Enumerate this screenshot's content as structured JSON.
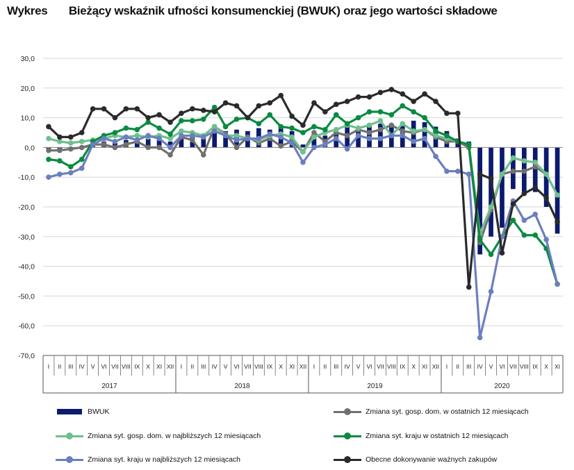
{
  "header": {
    "label": "Wykres",
    "title": "Bieżący wskaźnik ufności konsumenckiej (BWUK) oraz jego wartości składowe"
  },
  "colors": {
    "bwuk": "#0b1a6e",
    "gosp_last12": "#707070",
    "gosp_next12": "#6fbf8f",
    "kraj_last12": "#0a8a42",
    "kraj_next12": "#6b7fbf",
    "zakupy": "#2a2a2a"
  },
  "chart_data": {
    "type": "bar+line",
    "title": "Bieżący wskaźnik ufności konsumenckiej (BWUK) oraz jego wartości składowe",
    "ylim": [
      -70,
      30
    ],
    "yticks": [
      "30,0",
      "20,0",
      "10,0",
      "0,0",
      "-10,0",
      "-20,0",
      "-30,0",
      "-40,0",
      "-50,0",
      "-60,0",
      "-70,0"
    ],
    "yticks_values": [
      30,
      20,
      10,
      0,
      -10,
      -20,
      -30,
      -40,
      -50,
      -60,
      -70
    ],
    "grid": true,
    "months": [
      "I",
      "II",
      "III",
      "IV",
      "V",
      "VI",
      "VII",
      "VIII",
      "IX",
      "X",
      "XI",
      "XII",
      "I",
      "II",
      "III",
      "IV",
      "V",
      "VI",
      "VII",
      "VIII",
      "IX",
      "X",
      "XI",
      "XII",
      "I",
      "II",
      "III",
      "IV",
      "V",
      "VI",
      "VII",
      "VIII",
      "IX",
      "X",
      "XI",
      "XII",
      "I",
      "II",
      "III",
      "IV",
      "V",
      "VI",
      "VII",
      "VIII",
      "IX",
      "X",
      "XI"
    ],
    "years": [
      {
        "label": "2017",
        "start": 0,
        "count": 12
      },
      {
        "label": "2018",
        "start": 12,
        "count": 12
      },
      {
        "label": "2019",
        "start": 24,
        "count": 12
      },
      {
        "label": "2020",
        "start": 36,
        "count": 11
      }
    ],
    "legend_position": "bottom",
    "series": [
      {
        "key": "bwuk",
        "name": "BWUK",
        "kind": "bar",
        "values": [
          -0.5,
          -1,
          -1,
          -0.5,
          0.5,
          2,
          1.5,
          2.5,
          3,
          3.5,
          4,
          2,
          4,
          5,
          4,
          5,
          5.5,
          6,
          5.5,
          6.5,
          6,
          6.5,
          5.5,
          1,
          4,
          4,
          5,
          7,
          6.5,
          8,
          8,
          7.5,
          8.5,
          9,
          8.5,
          7,
          5.5,
          3,
          2,
          -36,
          -30,
          -27,
          -14,
          -16,
          -15,
          -20,
          -29
        ]
      },
      {
        "key": "gosp_last12",
        "name": "Zmiana syt. gosp. dom. w ostatnich 12 miesiącach",
        "kind": "line",
        "values": [
          -1,
          -1,
          -0.5,
          0,
          1,
          1,
          0,
          1,
          2,
          0,
          0,
          -2.5,
          3.5,
          2.5,
          -2.5,
          7,
          4.5,
          0,
          3.5,
          1.5,
          3,
          0.5,
          2,
          -1.5,
          5,
          2,
          5,
          4,
          6,
          5,
          6,
          7.5,
          5.5,
          5,
          6,
          3.5,
          2,
          2,
          0,
          -32,
          -21,
          -9,
          -8,
          -8,
          -6.5,
          -9,
          -16
        ]
      },
      {
        "key": "gosp_next12",
        "name": "Zmiana syt. gosp. dom. w najbliższych 12 miesiącach",
        "kind": "line",
        "values": [
          3,
          2,
          1.5,
          2,
          2.5,
          3,
          4,
          3.5,
          4,
          3.5,
          4,
          3,
          5.5,
          5,
          4,
          7,
          4,
          4,
          3,
          2.5,
          4,
          4.5,
          3.5,
          -1.5,
          3.5,
          5,
          6,
          7.5,
          6.5,
          7.5,
          9,
          4,
          8,
          5.5,
          6,
          4,
          3,
          2,
          1,
          -29,
          -20,
          -9,
          -3.5,
          -4.5,
          -5,
          -9,
          -16
        ]
      },
      {
        "key": "kraj_last12",
        "name": "Zmiana syt. kraju w ostatnich 12 miesiącach",
        "kind": "line",
        "values": [
          -4,
          -4.5,
          -6.5,
          -4,
          2,
          4,
          5,
          6.5,
          6,
          8.5,
          6.5,
          4.5,
          9,
          9,
          9.5,
          13.5,
          7,
          9.5,
          10,
          8,
          11,
          7,
          6.5,
          5,
          7,
          6,
          11,
          8,
          10,
          12,
          12,
          11,
          14,
          12,
          10,
          5.5,
          4,
          2,
          1,
          -31,
          -36,
          -30,
          -24.5,
          -29.5,
          -29.5,
          -34,
          -46
        ]
      },
      {
        "key": "kraj_next12",
        "name": "Zmiana syt. kraju w najbliższych 12 miesiącach",
        "kind": "line",
        "values": [
          -10,
          -9,
          -8.5,
          -7,
          1,
          3,
          2,
          3.5,
          2.5,
          4,
          3,
          0,
          4,
          4,
          3.5,
          5.5,
          4,
          2.5,
          3,
          3,
          4.5,
          3.5,
          1.5,
          -5,
          0,
          1,
          3,
          -0.5,
          4,
          3,
          3,
          4,
          4,
          2,
          3,
          -3,
          -8,
          -8,
          -9,
          -64,
          -48.5,
          -30,
          -18,
          -24.5,
          -22.5,
          -31,
          -46
        ]
      },
      {
        "key": "zakupy",
        "name": "Obecne dokonywanie ważnych zakupów",
        "kind": "line",
        "values": [
          7,
          3.5,
          3.5,
          5,
          13,
          13,
          10,
          13,
          13,
          10,
          11,
          8.5,
          11.5,
          13,
          12.5,
          12,
          15,
          14,
          10,
          14,
          15,
          17.5,
          10.5,
          7.5,
          15,
          12,
          14.5,
          15.5,
          17,
          17,
          18.5,
          19.5,
          18,
          15.5,
          18,
          15.5,
          11.5,
          11.5,
          -47,
          -9,
          -10.5,
          -35.5,
          -19,
          -15.5,
          -13.5,
          -17,
          -25
        ]
      }
    ]
  }
}
